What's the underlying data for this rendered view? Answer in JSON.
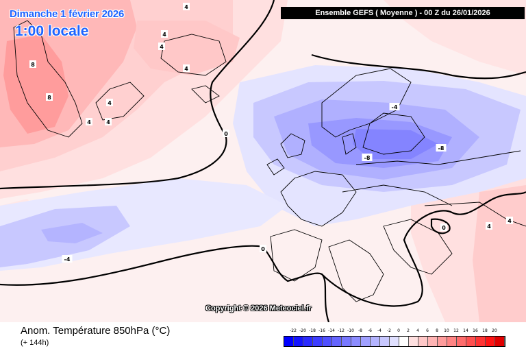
{
  "header": {
    "date": "Dimanche 1 février 2026",
    "time": "1:00 locale",
    "run": "Ensemble GEFS  ( Moyenne )  -  00 Z du 26/01/2026"
  },
  "map": {
    "copyright": "Copyright © 2026 Meteociel.fr",
    "contour_labels": [
      {
        "text": "0",
        "kind": "line",
        "lon_lat": [
          330,
          195
        ]
      },
      {
        "text": "0",
        "kind": "line",
        "lon_lat": [
          384,
          363
        ]
      },
      {
        "text": "0",
        "kind": "line",
        "lon_lat": [
          648,
          332
        ]
      },
      {
        "text": "4",
        "kind": "warm",
        "lon_lat": [
          272,
          10
        ]
      },
      {
        "text": "4",
        "kind": "warm",
        "lon_lat": [
          240,
          50
        ]
      },
      {
        "text": "4",
        "kind": "warm",
        "lon_lat": [
          236,
          68
        ]
      },
      {
        "text": "4",
        "kind": "warm",
        "lon_lat": [
          272,
          100
        ]
      },
      {
        "text": "4",
        "kind": "warm",
        "lon_lat": [
          160,
          150
        ]
      },
      {
        "text": "4",
        "kind": "warm",
        "lon_lat": [
          130,
          178
        ]
      },
      {
        "text": "4",
        "kind": "warm",
        "lon_lat": [
          158,
          178
        ]
      },
      {
        "text": "8",
        "kind": "warm",
        "lon_lat": [
          48,
          94
        ]
      },
      {
        "text": "8",
        "kind": "warm",
        "lon_lat": [
          72,
          142
        ]
      },
      {
        "text": "-4",
        "kind": "cold",
        "lon_lat": [
          576,
          156
        ]
      },
      {
        "text": "-8",
        "kind": "cold",
        "lon_lat": [
          644,
          216
        ]
      },
      {
        "text": "-8",
        "kind": "cold",
        "lon_lat": [
          536,
          230
        ]
      },
      {
        "text": "-4",
        "kind": "cold",
        "lon_lat": [
          98,
          378
        ]
      },
      {
        "text": "4",
        "kind": "warm",
        "lon_lat": [
          714,
          330
        ]
      },
      {
        "text": "4",
        "kind": "warm",
        "lon_lat": [
          744,
          322
        ]
      }
    ]
  },
  "footer": {
    "parameter": "Anom. Température 850hPa (°C)",
    "lead_time": "(+ 144h)"
  },
  "legend": {
    "values": [
      -22,
      -20,
      -18,
      -16,
      -14,
      -12,
      -10,
      -8,
      -6,
      -4,
      -2,
      0,
      2,
      4,
      6,
      8,
      10,
      12,
      14,
      16,
      18,
      20
    ],
    "colors": [
      "#0000ff",
      "#1414ff",
      "#2a2aff",
      "#3d3dff",
      "#5050ff",
      "#6565ff",
      "#7878ff",
      "#8c8cff",
      "#a0a0ff",
      "#b4b4ff",
      "#c8c8ff",
      "#e0e0ff",
      "#ffffff",
      "#ffe0e0",
      "#ffc8c8",
      "#ffb4b4",
      "#ff9c9c",
      "#ff8484",
      "#ff6c6c",
      "#ff5050",
      "#ff3434",
      "#ff1414",
      "#e00000"
    ]
  }
}
